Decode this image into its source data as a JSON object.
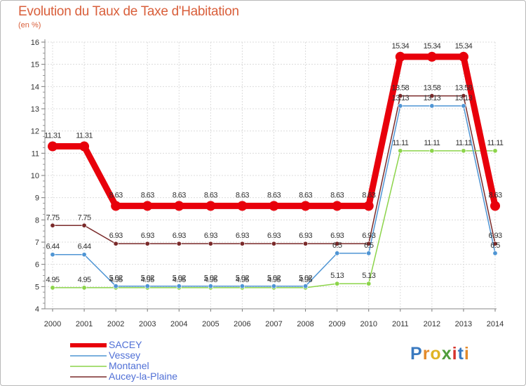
{
  "header": {
    "title": "Evolution du Taux de Taxe d'Habitation",
    "subtitle": "(en %)"
  },
  "logo": {
    "text": "Proxiti",
    "letters": [
      "P",
      "r",
      "o",
      "x",
      "i",
      "t",
      "i"
    ],
    "colors": [
      "#3a7ac0",
      "#e38a2b",
      "#e0b425",
      "#4f9d3a",
      "#d5342d",
      "#3a7ac0",
      "#e38a2b"
    ]
  },
  "chart_data": {
    "type": "line",
    "ylim": [
      4,
      16
    ],
    "yticks": [
      "4",
      "5",
      "6",
      "7",
      "8",
      "9",
      "10",
      "11",
      "12",
      "13",
      "14",
      "15",
      "16"
    ],
    "grid": true,
    "legend_position": "bottom-left",
    "categories": [
      "2000",
      "2001",
      "2002",
      "2003",
      "2004",
      "2005",
      "2006",
      "2007",
      "2008",
      "2009",
      "2010",
      "2011",
      "2012",
      "2013",
      "2014"
    ],
    "series": [
      {
        "name": "SACEY",
        "color": "#e8000b",
        "values": [
          11.31,
          11.31,
          8.63,
          8.63,
          8.63,
          8.63,
          8.63,
          8.63,
          8.63,
          8.63,
          8.63,
          15.34,
          15.34,
          15.34,
          8.63
        ],
        "labels": [
          "11.31",
          "11.31",
          "8.63",
          "8.63",
          "8.63",
          "8.63",
          "8.63",
          "8.63",
          "8.63",
          "8.63",
          "8.63",
          "15.34",
          "15.34",
          "15.34",
          "8.63"
        ]
      },
      {
        "name": "Vessey",
        "color": "#4f95d4",
        "values": [
          6.44,
          6.44,
          5.02,
          5.02,
          5.02,
          5.02,
          5.02,
          5.02,
          5.02,
          6.5,
          6.5,
          13.13,
          13.13,
          13.13,
          6.5
        ],
        "labels": [
          "6.44",
          "6.44",
          "5.02",
          "5.02",
          "5.02",
          "5.02",
          "5.02",
          "5.02",
          "5.02",
          "6.5",
          "6.5",
          "13.13",
          "13.13",
          "13.13",
          "6.5"
        ]
      },
      {
        "name": "Montanel",
        "color": "#8cd44a",
        "values": [
          4.95,
          4.95,
          4.95,
          4.95,
          4.95,
          4.95,
          4.95,
          4.95,
          4.95,
          5.13,
          5.13,
          11.11,
          11.11,
          11.11,
          11.11
        ],
        "labels": [
          "4.95",
          "4.95",
          "4.95",
          "4.95",
          "4.95",
          "4.95",
          "4.95",
          "4.95",
          "4.95",
          "5.13",
          "5.13",
          "11.11",
          "11.11",
          "11.11",
          "11.11"
        ]
      },
      {
        "name": "Aucey-la-Plaine",
        "color": "#7a2a2a",
        "values": [
          7.75,
          7.75,
          6.93,
          6.93,
          6.93,
          6.93,
          6.93,
          6.93,
          6.93,
          6.93,
          6.93,
          13.58,
          13.58,
          13.58,
          6.93
        ],
        "labels": [
          "7.75",
          "7.75",
          "6.93",
          "6.93",
          "6.93",
          "6.93",
          "6.93",
          "6.93",
          "6.93",
          "6.93",
          "6.93",
          "13.58",
          "13.58",
          "13.58",
          "6.93"
        ]
      }
    ]
  }
}
